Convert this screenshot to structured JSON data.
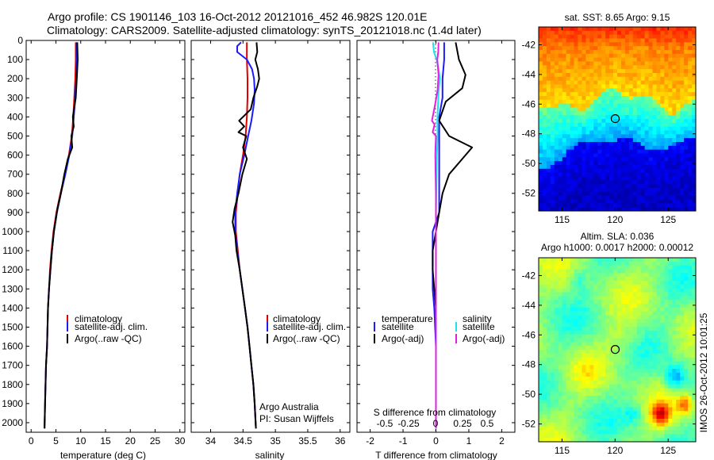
{
  "header": {
    "line1": "Argo profile: CS 1901146_103 16-Oct-2012 20121016_452 46.982S 120.01E",
    "line2": "Climatology: CARS2009. Satellite-adjusted climatology: synTS_20121018.nc (1.4d later)"
  },
  "side_label": "IMOS 26-Oct-2012 10:01:25",
  "colors": {
    "climatology": "#e00000",
    "satellite": "#1a1aff",
    "argo": "#000000",
    "salinity_sat": "#20e0f0",
    "salinity_argo": "#e020e0"
  },
  "chart_data": [
    {
      "type": "line",
      "id": "temperature",
      "xlabel": "temperature (deg C)",
      "ylabel": "",
      "xlim": [
        -1,
        31
      ],
      "ylim": [
        2050,
        0
      ],
      "xticks": [
        0,
        5,
        10,
        15,
        20,
        25,
        30
      ],
      "yticks": [
        0,
        100,
        200,
        300,
        400,
        500,
        600,
        700,
        800,
        900,
        1000,
        1100,
        1200,
        1300,
        1400,
        1500,
        1600,
        1700,
        1800,
        1900,
        2000
      ],
      "legend": [
        "climatology",
        "satellite-adj. clim.",
        "Argo(..raw -QC)"
      ],
      "series": [
        {
          "name": "climatology",
          "color": "#e00000",
          "points": [
            [
              9.0,
              10
            ],
            [
              9.0,
              100
            ],
            [
              8.9,
              200
            ],
            [
              8.7,
              300
            ],
            [
              8.5,
              400
            ],
            [
              8.2,
              500
            ],
            [
              7.6,
              600
            ],
            [
              6.8,
              700
            ],
            [
              5.9,
              800
            ],
            [
              5.1,
              900
            ],
            [
              4.5,
              1000
            ],
            [
              4.1,
              1100
            ],
            [
              3.8,
              1200
            ],
            [
              3.6,
              1300
            ],
            [
              3.4,
              1400
            ],
            [
              3.3,
              1500
            ],
            [
              3.2,
              1600
            ],
            [
              3.0,
              1700
            ],
            [
              2.9,
              1800
            ],
            [
              2.8,
              1900
            ],
            [
              2.7,
              2030
            ]
          ]
        },
        {
          "name": "satellite-adj. clim.",
          "color": "#1a1aff",
          "points": [
            [
              9.2,
              10
            ],
            [
              9.2,
              100
            ],
            [
              9.1,
              200
            ],
            [
              8.9,
              300
            ],
            [
              8.6,
              400
            ],
            [
              8.3,
              500
            ],
            [
              7.7,
              600
            ],
            [
              6.9,
              700
            ],
            [
              6.0,
              800
            ],
            [
              5.2,
              900
            ],
            [
              4.6,
              1000
            ],
            [
              4.2,
              1100
            ],
            [
              3.9,
              1200
            ],
            [
              3.6,
              1300
            ],
            [
              3.4,
              1400
            ],
            [
              3.3,
              1500
            ],
            [
              3.2,
              1600
            ],
            [
              3.0,
              1700
            ],
            [
              2.9,
              1800
            ],
            [
              2.8,
              1900
            ],
            [
              2.7,
              2030
            ]
          ]
        },
        {
          "name": "Argo(..raw -QC)",
          "color": "#000000",
          "points": [
            [
              9.3,
              10
            ],
            [
              9.4,
              100
            ],
            [
              9.2,
              200
            ],
            [
              9.0,
              300
            ],
            [
              8.4,
              400
            ],
            [
              8.6,
              450
            ],
            [
              8.1,
              500
            ],
            [
              8.3,
              560
            ],
            [
              7.4,
              620
            ],
            [
              6.7,
              700
            ],
            [
              6.0,
              800
            ],
            [
              5.3,
              880
            ],
            [
              4.6,
              1000
            ],
            [
              4.2,
              1100
            ],
            [
              3.9,
              1200
            ],
            [
              3.6,
              1300
            ],
            [
              3.4,
              1400
            ],
            [
              3.3,
              1500
            ],
            [
              3.2,
              1600
            ],
            [
              3.0,
              1700
            ],
            [
              2.9,
              1800
            ],
            [
              2.8,
              1900
            ],
            [
              2.7,
              2030
            ]
          ]
        }
      ]
    },
    {
      "type": "line",
      "id": "salinity",
      "xlabel": "salinity",
      "ylabel": "",
      "xlim": [
        33.7,
        36.15
      ],
      "ylim": [
        2050,
        0
      ],
      "xticks": [
        34,
        34.5,
        35,
        35.5,
        36
      ],
      "xticklabels": [
        "34",
        "34.5",
        "35",
        "35.5",
        "36"
      ],
      "legend": [
        "climatology",
        "satellite-adj. clim.",
        "Argo(..raw -QC)"
      ],
      "annotation": [
        "Argo Australia",
        "PI: Susan Wijffels"
      ],
      "series": [
        {
          "name": "climatology",
          "color": "#e00000",
          "points": [
            [
              34.56,
              10
            ],
            [
              34.56,
              100
            ],
            [
              34.57,
              200
            ],
            [
              34.57,
              300
            ],
            [
              34.56,
              400
            ],
            [
              34.54,
              500
            ],
            [
              34.5,
              600
            ],
            [
              34.45,
              700
            ],
            [
              34.42,
              800
            ],
            [
              34.39,
              900
            ],
            [
              34.39,
              1000
            ],
            [
              34.42,
              1100
            ],
            [
              34.45,
              1200
            ],
            [
              34.49,
              1300
            ],
            [
              34.53,
              1400
            ],
            [
              34.57,
              1500
            ],
            [
              34.6,
              1600
            ],
            [
              34.63,
              1700
            ],
            [
              34.66,
              1800
            ],
            [
              34.68,
              1900
            ],
            [
              34.7,
              2030
            ]
          ]
        },
        {
          "name": "satellite-adj. clim.",
          "color": "#1a1aff",
          "points": [
            [
              34.47,
              10
            ],
            [
              34.41,
              30
            ],
            [
              34.41,
              60
            ],
            [
              34.56,
              100
            ],
            [
              34.64,
              150
            ],
            [
              34.67,
              200
            ],
            [
              34.68,
              260
            ],
            [
              34.67,
              330
            ],
            [
              34.63,
              420
            ],
            [
              34.58,
              500
            ],
            [
              34.52,
              600
            ],
            [
              34.45,
              700
            ],
            [
              34.41,
              800
            ],
            [
              34.38,
              900
            ],
            [
              34.38,
              1000
            ],
            [
              34.41,
              1100
            ],
            [
              34.45,
              1200
            ],
            [
              34.49,
              1300
            ],
            [
              34.53,
              1400
            ],
            [
              34.57,
              1500
            ],
            [
              34.6,
              1600
            ],
            [
              34.63,
              1700
            ],
            [
              34.66,
              1800
            ],
            [
              34.68,
              1900
            ],
            [
              34.7,
              2030
            ]
          ]
        },
        {
          "name": "Argo(..raw -QC)",
          "color": "#000000",
          "points": [
            [
              34.71,
              10
            ],
            [
              34.72,
              60
            ],
            [
              34.69,
              100
            ],
            [
              34.73,
              150
            ],
            [
              34.75,
              200
            ],
            [
              34.72,
              240
            ],
            [
              34.66,
              300
            ],
            [
              34.62,
              360
            ],
            [
              34.44,
              420
            ],
            [
              34.52,
              450
            ],
            [
              34.43,
              480
            ],
            [
              34.55,
              500
            ],
            [
              34.5,
              560
            ],
            [
              34.56,
              620
            ],
            [
              34.49,
              700
            ],
            [
              34.43,
              800
            ],
            [
              34.37,
              880
            ],
            [
              34.34,
              950
            ],
            [
              34.38,
              1020
            ],
            [
              34.4,
              1100
            ],
            [
              34.45,
              1200
            ],
            [
              34.49,
              1300
            ],
            [
              34.53,
              1400
            ],
            [
              34.57,
              1500
            ],
            [
              34.6,
              1600
            ],
            [
              34.63,
              1700
            ],
            [
              34.66,
              1800
            ],
            [
              34.68,
              1900
            ],
            [
              34.7,
              2030
            ]
          ]
        }
      ]
    },
    {
      "type": "line",
      "id": "difference",
      "xlabel": "T difference from climatology",
      "ylabel": "",
      "xlim": [
        -2.4,
        2.4
      ],
      "ylim": [
        2050,
        0
      ],
      "xticks": [
        -2,
        -1,
        0,
        1,
        2
      ],
      "top_axis_label": "S difference from climatology",
      "top_ticks": [
        "-0.5",
        "-0.25",
        "0",
        "0.25",
        "0.5"
      ],
      "legend_left_title": "temperature",
      "legend_left": [
        "satellite",
        "Argo(-adj)"
      ],
      "legend_right_title": "salinity",
      "legend_right": [
        "satellite",
        "Argo(-adj)"
      ],
      "series": [
        {
          "name": "temperature satellite",
          "color": "#1a1aff",
          "points": [
            [
              0.25,
              10
            ],
            [
              0.25,
              100
            ],
            [
              0.2,
              200
            ],
            [
              0.2,
              300
            ],
            [
              0.1,
              400
            ],
            [
              0.1,
              500
            ],
            [
              0.1,
              600
            ],
            [
              0.1,
              700
            ],
            [
              0.1,
              800
            ],
            [
              0.1,
              900
            ],
            [
              -0.1,
              1000
            ],
            [
              -0.1,
              1100
            ],
            [
              -0.1,
              1200
            ],
            [
              -0.1,
              1300
            ],
            [
              -0.05,
              1400
            ],
            [
              0,
              1600
            ],
            [
              0,
              2030
            ]
          ]
        },
        {
          "name": "temperature Argo(-adj)",
          "color": "#000000",
          "points": [
            [
              0.6,
              10
            ],
            [
              0.7,
              100
            ],
            [
              0.9,
              180
            ],
            [
              0.8,
              250
            ],
            [
              0.3,
              320
            ],
            [
              0.1,
              420
            ],
            [
              0.4,
              500
            ],
            [
              1.1,
              560
            ],
            [
              0.8,
              620
            ],
            [
              0.4,
              700
            ],
            [
              0.2,
              800
            ],
            [
              0.1,
              900
            ],
            [
              0.0,
              1000
            ],
            [
              -0.1,
              1100
            ],
            [
              -0.1,
              1200
            ],
            [
              -0.05,
              1300
            ],
            [
              0,
              1400
            ],
            [
              0,
              1600
            ],
            [
              0,
              2030
            ]
          ]
        },
        {
          "name": "salinity satellite",
          "color": "#20e0f0",
          "points": [
            [
              -0.09,
              10
            ],
            [
              -0.06,
              60
            ],
            [
              0.02,
              100
            ],
            [
              0.08,
              150
            ],
            [
              0.12,
              200
            ],
            [
              0.08,
              270
            ],
            [
              0.06,
              350
            ],
            [
              0.04,
              420
            ],
            [
              0.05,
              500
            ],
            [
              0.03,
              600
            ],
            [
              0.02,
              700
            ],
            [
              0.01,
              800
            ],
            [
              0.0,
              900
            ],
            [
              0.0,
              1000
            ],
            [
              0.0,
              1200
            ],
            [
              0.0,
              1600
            ],
            [
              0.0,
              2030
            ]
          ]
        },
        {
          "name": "salinity Argo(-adj)",
          "color": "#e020e0",
          "points": [
            [
              0.08,
              10
            ],
            [
              0.07,
              60
            ],
            [
              0.04,
              100
            ],
            [
              0.08,
              180
            ],
            [
              0.05,
              260
            ],
            [
              -0.02,
              330
            ],
            [
              -0.12,
              420
            ],
            [
              -0.04,
              440
            ],
            [
              -0.1,
              480
            ],
            [
              0.0,
              500
            ],
            [
              -0.02,
              600
            ],
            [
              -0.01,
              700
            ],
            [
              0.0,
              800
            ],
            [
              0.0,
              1000
            ],
            [
              0.0,
              1200
            ],
            [
              0.0,
              1600
            ],
            [
              0.0,
              2030
            ]
          ]
        }
      ]
    },
    {
      "type": "heatmap",
      "id": "sst_map",
      "title": "sat. SST: 8.65 Argo: 9.15",
      "xticks": [
        115,
        120,
        125
      ],
      "yticks": [
        -42,
        -44,
        -46,
        -48,
        -50,
        -52
      ],
      "xlim": [
        112.8,
        127.6
      ],
      "ylim": [
        -53.2,
        -40.8
      ],
      "marker": [
        120.01,
        -46.98
      ]
    },
    {
      "type": "heatmap",
      "id": "sla_map",
      "title": "Altim. SLA: 0.036",
      "subtitle": "Argo h1000: 0.0017 h2000: 0.00012",
      "xticks": [
        115,
        120,
        125
      ],
      "yticks": [
        -42,
        -44,
        -46,
        -48,
        -50,
        -52
      ],
      "xlim": [
        112.8,
        127.6
      ],
      "ylim": [
        -53.2,
        -40.8
      ],
      "marker": [
        120.01,
        -46.98
      ]
    }
  ]
}
